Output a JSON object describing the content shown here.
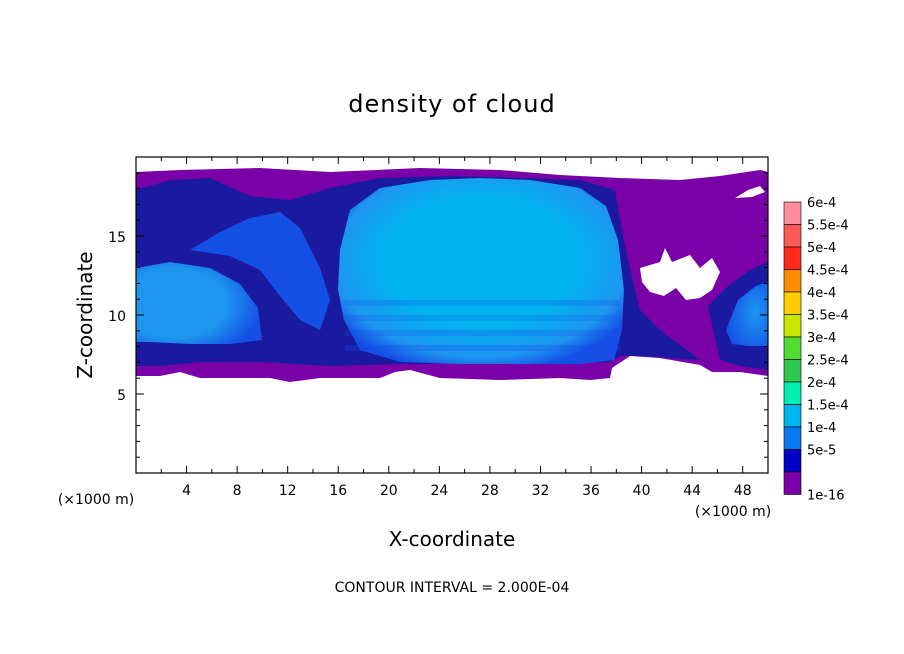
{
  "chart_data": {
    "type": "heatmap",
    "title": "density of cloud",
    "xlabel": "X-coordinate",
    "ylabel": "Z-coordinate",
    "x_unit": "(×1000 m)",
    "z_unit": "(×1000 m)",
    "xlim": [
      0,
      50
    ],
    "ylim": [
      0,
      20
    ],
    "x_ticks": [
      4,
      8,
      12,
      16,
      20,
      24,
      28,
      32,
      36,
      40,
      44,
      48
    ],
    "y_ticks": [
      5,
      10,
      15
    ],
    "footer": "CONTOUR INTERVAL = 2.000E-04",
    "colorbar": {
      "labels": [
        "6e-4",
        "5.5e-4",
        "5e-4",
        "4.5e-4",
        "4e-4",
        "3.5e-4",
        "3e-4",
        "2.5e-4",
        "2e-4",
        "1.5e-4",
        "1e-4",
        "5e-5",
        "1e-16"
      ],
      "colors": [
        "#ff8c9c",
        "#ff5a5a",
        "#ff2a1a",
        "#ff8c00",
        "#ffcc00",
        "#c8e600",
        "#50dc32",
        "#32c850",
        "#00f0b4",
        "#00b4f0",
        "#0a78f0",
        "#0000c8",
        "#7a00a8"
      ]
    },
    "field_levels": {
      "1e-16": "#7a00a8",
      "5e-5": "#1a1aa0",
      "1e-4": "#1450e6",
      "1.5e-4": "#1e96f0",
      "2e-4": "#00b4f0"
    }
  }
}
